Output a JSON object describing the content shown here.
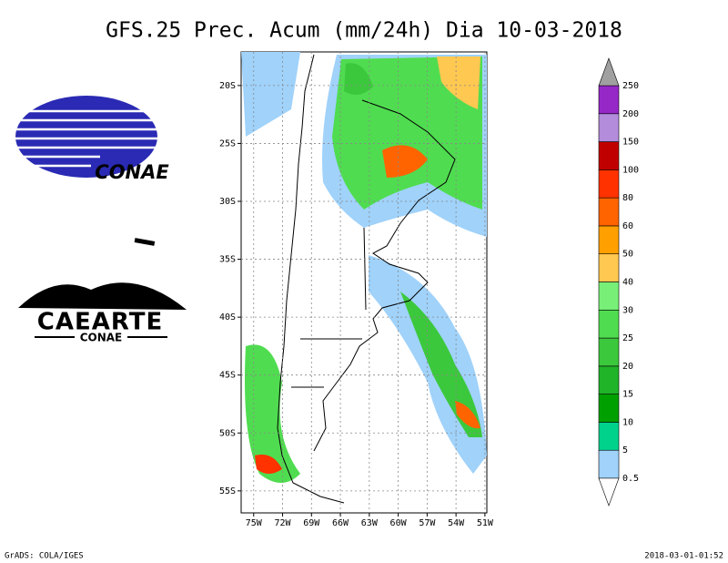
{
  "header": {
    "title": "GFS.25 Prec. Acum (mm/24h) Dia 10-03-2018"
  },
  "map": {
    "xlim": [
      -76.3,
      -50.8
    ],
    "ylim": [
      -56.9,
      -17.1
    ],
    "xticks": [
      {
        "value": -75,
        "label": "75W"
      },
      {
        "value": -72,
        "label": "72W"
      },
      {
        "value": -69,
        "label": "69W"
      },
      {
        "value": -66,
        "label": "66W"
      },
      {
        "value": -63,
        "label": "63W"
      },
      {
        "value": -60,
        "label": "60W"
      },
      {
        "value": -57,
        "label": "57W"
      },
      {
        "value": -54,
        "label": "54W"
      },
      {
        "value": -51,
        "label": "51W"
      }
    ],
    "yticks": [
      {
        "value": -20,
        "label": "20S"
      },
      {
        "value": -25,
        "label": "25S"
      },
      {
        "value": -30,
        "label": "30S"
      },
      {
        "value": -35,
        "label": "35S"
      },
      {
        "value": -40,
        "label": "40S"
      },
      {
        "value": -45,
        "label": "45S"
      },
      {
        "value": -50,
        "label": "50S"
      },
      {
        "value": -55,
        "label": "55S"
      }
    ],
    "grid": true
  },
  "colorbar": {
    "levels": [
      0.5,
      5,
      10,
      15,
      20,
      25,
      30,
      40,
      50,
      60,
      80,
      100,
      150,
      200,
      250
    ],
    "colors": [
      "#a0d2fa",
      "#00d28c",
      "#00a000",
      "#20b428",
      "#3cc83c",
      "#50dc50",
      "#78f078",
      "#ffc850",
      "#ffa000",
      "#ff6400",
      "#ff3200",
      "#c00000",
      "#b48cdc",
      "#9628c8"
    ],
    "under_color": "#ffffff",
    "over_color": "#a0a0a0"
  },
  "logos": {
    "conae": "CONAE",
    "caearte": "CAEARTE",
    "caearte_sub": "CONAE"
  },
  "footer": {
    "left": "GrADS: COLA/IGES",
    "right": "2018-03-01-01:52"
  }
}
